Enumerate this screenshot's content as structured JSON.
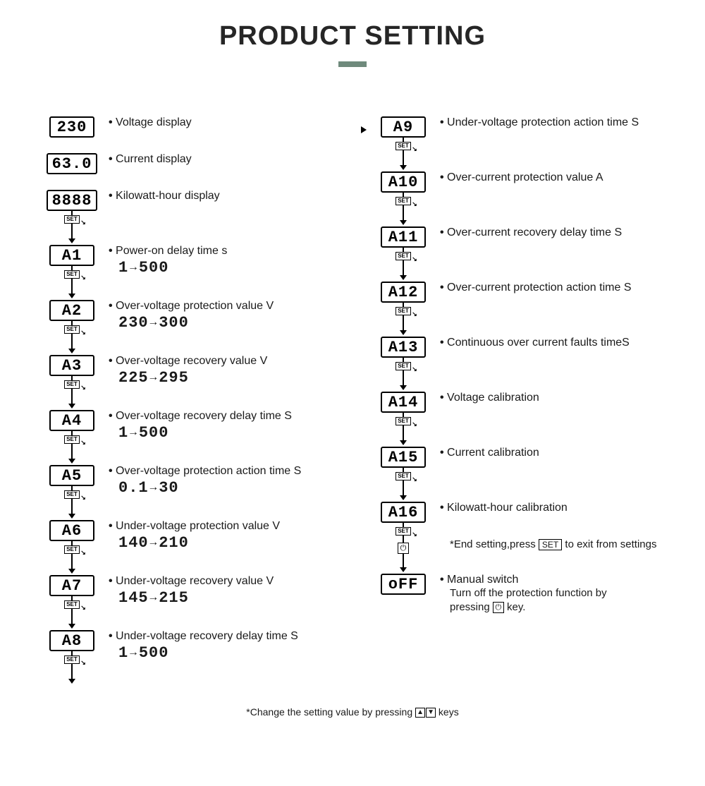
{
  "title": "PRODUCT SETTING",
  "colors": {
    "text": "#262626",
    "accent": "#6f8a7c",
    "border": "#000000",
    "background": "#ffffff"
  },
  "left": [
    {
      "lcd": "230",
      "label": "Voltage display",
      "range": null,
      "set_after": false,
      "gap": true
    },
    {
      "lcd": "63.0",
      "label": "Current display",
      "range": null,
      "set_after": false,
      "gap": true
    },
    {
      "lcd": "8888",
      "label": "Kilowatt-hour display",
      "range": null,
      "set_after": true,
      "wide": true
    },
    {
      "lcd": "A1",
      "label": "Power-on delay time s",
      "range_from": "1",
      "range_to": "500",
      "set_after": true
    },
    {
      "lcd": "A2",
      "label": "Over-voltage protection value V",
      "range_from": "230",
      "range_to": "300",
      "set_after": true
    },
    {
      "lcd": "A3",
      "label": "Over-voltage recovery value V",
      "range_from": "225",
      "range_to": "295",
      "set_after": true
    },
    {
      "lcd": "A4",
      "label": "Over-voltage recovery delay time S",
      "range_from": "1",
      "range_to": "500",
      "set_after": true
    },
    {
      "lcd": "A5",
      "label": "Over-voltage protection action time S",
      "range_from": "0.1",
      "range_to": "30",
      "set_after": true
    },
    {
      "lcd": "A6",
      "label": "Under-voltage protection value V",
      "range_from": "140",
      "range_to": "210",
      "set_after": true
    },
    {
      "lcd": "A7",
      "label": "Under-voltage recovery value V",
      "range_from": "145",
      "range_to": "215",
      "set_after": true
    },
    {
      "lcd": "A8",
      "label": "Under-voltage recovery delay time S",
      "range_from": "1",
      "range_to": "500",
      "set_after": true,
      "tail": true
    }
  ],
  "right": [
    {
      "lcd": "A9",
      "label": "Under-voltage protection action time S",
      "set_after": true,
      "incoming": true
    },
    {
      "lcd": "A10",
      "label": "Over-current protection value A",
      "set_after": true
    },
    {
      "lcd": "A11",
      "label": "Over-current recovery delay time S",
      "set_after": true
    },
    {
      "lcd": "A12",
      "label": "Over-current protection action time S",
      "set_after": true
    },
    {
      "lcd": "A13",
      "label": "Continuous over current faults timeS",
      "set_after": true
    },
    {
      "lcd": "A14",
      "label": "Voltage calibration",
      "set_after": true
    },
    {
      "lcd": "A15",
      "label": "Current calibration",
      "set_after": true
    },
    {
      "lcd": "A16",
      "label": "Kilowatt-hour calibration",
      "set_after": true,
      "end_after": true
    },
    {
      "lcd": "oFF",
      "label": "Manual switch",
      "off": true
    }
  ],
  "end_text_pre": "*End setting,press",
  "end_text_post": "to exit from settings",
  "set_label": "SET",
  "off_sub_1": "Turn off the protection function by",
  "off_sub_2": "pressing",
  "off_sub_3": "key.",
  "footnote_pre": "*Change the setting value by pressing",
  "footnote_post": "keys",
  "key_up": "▲",
  "key_down": "▼",
  "power_glyph": "⏻"
}
